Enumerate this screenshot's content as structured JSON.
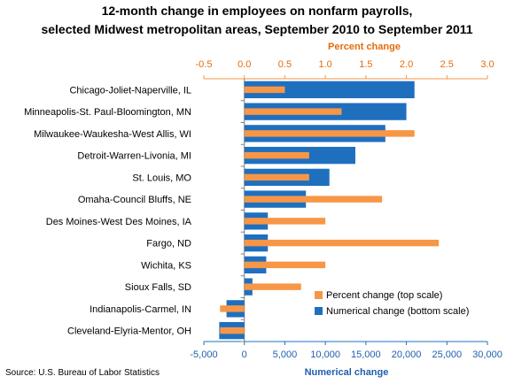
{
  "title_line1": "12-month change in employees on nonfarm payrolls,",
  "title_line2": "selected Midwest metropolitan areas, September 2010 to September 2011",
  "source": "Source: U.S. Bureau of Labor Statistics",
  "colors": {
    "percent": "#F79646",
    "numerical": "#1F6FBF",
    "percent_text": "#E46C0A",
    "numerical_text": "#1F5FAD"
  },
  "chart_data": {
    "type": "bar",
    "orientation": "horizontal",
    "categories": [
      "Chicago-Joliet-Naperville, IL",
      "Minneapolis-St. Paul-Bloomington,  MN",
      "Milwaukee-Waukesha-West Allis, WI",
      "Detroit-Warren-Livonia, MI",
      "St. Louis, MO",
      "Omaha-Council Bluffs, NE",
      "Des Moines-West Des Moines, IA",
      "Fargo, ND",
      "Wichita, KS",
      "Sioux Falls, SD",
      "Indianapolis-Carmel, IN",
      "Cleveland-Elyria-Mentor, OH"
    ],
    "series": [
      {
        "name": "Percent change (top scale)",
        "axis": "top",
        "values": [
          0.5,
          1.2,
          2.1,
          0.8,
          0.8,
          1.7,
          1.0,
          2.4,
          1.0,
          0.7,
          -0.3,
          -0.3
        ]
      },
      {
        "name": "Numerical change (bottom scale)",
        "axis": "bottom",
        "values": [
          21000,
          20000,
          17400,
          13700,
          10500,
          7600,
          2900,
          2900,
          2700,
          1000,
          -2200,
          -3100
        ]
      }
    ],
    "top_axis": {
      "label": "Percent change",
      "range": [
        -0.5,
        3.0
      ],
      "ticks": [
        "-0.5",
        "0.0",
        "0.5",
        "1.0",
        "1.5",
        "2.0",
        "2.5",
        "3.0"
      ]
    },
    "bottom_axis": {
      "label": "Numerical change",
      "range": [
        -5000,
        30000
      ],
      "ticks": [
        "-5,000",
        "0",
        "5,000",
        "10,000",
        "15,000",
        "20,000",
        "25,000",
        "30,000"
      ]
    },
    "legend_position": "lower-right",
    "grid": false
  }
}
